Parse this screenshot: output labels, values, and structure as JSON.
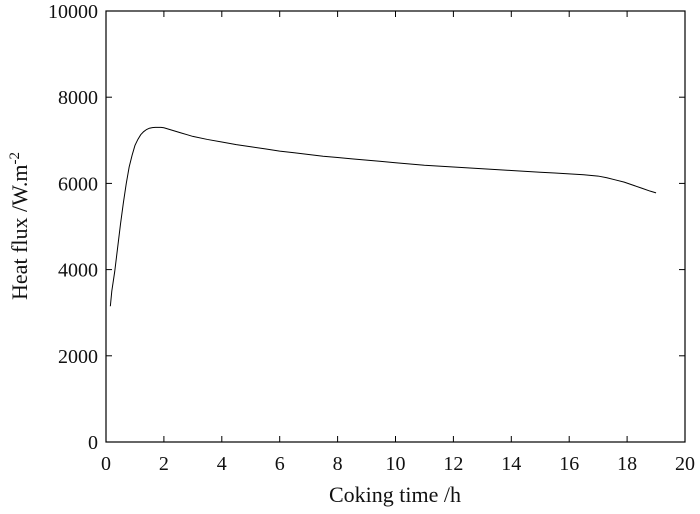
{
  "chart_data": {
    "type": "line",
    "xlabel": "Coking time /h",
    "ylabel_main": "Heat flux /W.m",
    "ylabel_sup": "-2",
    "xlim": [
      0,
      20
    ],
    "ylim": [
      0,
      10000
    ],
    "xticks": [
      0,
      2,
      4,
      6,
      8,
      10,
      12,
      14,
      16,
      18,
      20
    ],
    "yticks": [
      0,
      2000,
      4000,
      6000,
      8000,
      10000
    ],
    "grid": false,
    "series": [
      {
        "x": [
          0.15,
          0.2,
          0.3,
          0.4,
          0.5,
          0.6,
          0.7,
          0.8,
          0.9,
          1.0,
          1.1,
          1.2,
          1.3,
          1.4,
          1.5,
          1.6,
          1.7,
          1.8,
          1.9,
          2.0,
          2.2,
          2.4,
          2.6,
          2.8,
          3.0,
          3.5,
          4.0,
          4.5,
          5.0,
          5.5,
          6.0,
          6.5,
          7.0,
          7.5,
          8.0,
          8.5,
          9.0,
          9.5,
          10.0,
          10.5,
          11.0,
          11.5,
          12.0,
          12.5,
          13.0,
          13.5,
          14.0,
          14.5,
          15.0,
          15.5,
          16.0,
          16.5,
          17.0,
          17.3,
          17.6,
          17.9,
          18.2,
          18.5,
          18.8,
          19.0
        ],
        "y": [
          3150,
          3500,
          3950,
          4500,
          5050,
          5550,
          6000,
          6380,
          6650,
          6880,
          7020,
          7130,
          7200,
          7250,
          7280,
          7295,
          7300,
          7300,
          7300,
          7290,
          7250,
          7210,
          7170,
          7130,
          7090,
          7020,
          6960,
          6900,
          6850,
          6800,
          6750,
          6710,
          6670,
          6630,
          6600,
          6570,
          6540,
          6510,
          6480,
          6450,
          6420,
          6400,
          6380,
          6360,
          6340,
          6320,
          6300,
          6280,
          6260,
          6240,
          6220,
          6200,
          6170,
          6130,
          6080,
          6030,
          5960,
          5890,
          5820,
          5780
        ]
      }
    ]
  }
}
